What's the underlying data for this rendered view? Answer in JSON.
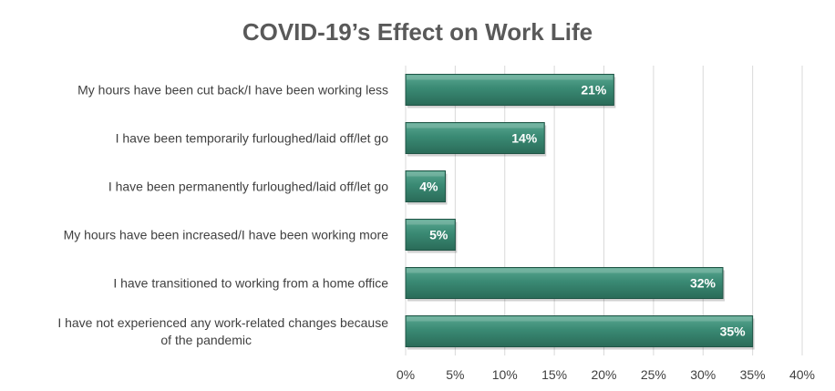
{
  "chart_data": {
    "type": "bar",
    "orientation": "horizontal",
    "title": "COVID-19’s Effect on Work Life",
    "xlabel": "",
    "ylabel": "",
    "categories": [
      [
        "My hours have been cut back/I have been working less"
      ],
      [
        "I have been temporarily furloughed/laid off/let go"
      ],
      [
        "I have been permanently furloughed/laid off/let go"
      ],
      [
        "My hours have been increased/I have been working more"
      ],
      [
        "I have transitioned to working from a home office"
      ],
      [
        "I have not experienced any work-related changes because",
        "of the pandemic"
      ]
    ],
    "values": [
      21,
      14,
      4,
      5,
      32,
      35
    ],
    "data_labels": [
      "21%",
      "14%",
      "4%",
      "5%",
      "32%",
      "35%"
    ],
    "xlim": [
      0,
      40
    ],
    "ticks": [
      0,
      5,
      10,
      15,
      20,
      25,
      30,
      35,
      40
    ],
    "tick_labels": [
      "0%",
      "5%",
      "10%",
      "15%",
      "20%",
      "25%",
      "30%",
      "35%",
      "40%"
    ],
    "grid": true,
    "legend": "none",
    "colors": {
      "bar_top": "#5aa891",
      "bar_mid": "#3a8a74",
      "bar_bottom": "#2a6b58",
      "bar_edge": "#1f5445",
      "title": "#595959",
      "text": "#404040",
      "grid": "#d9d9d9"
    }
  }
}
